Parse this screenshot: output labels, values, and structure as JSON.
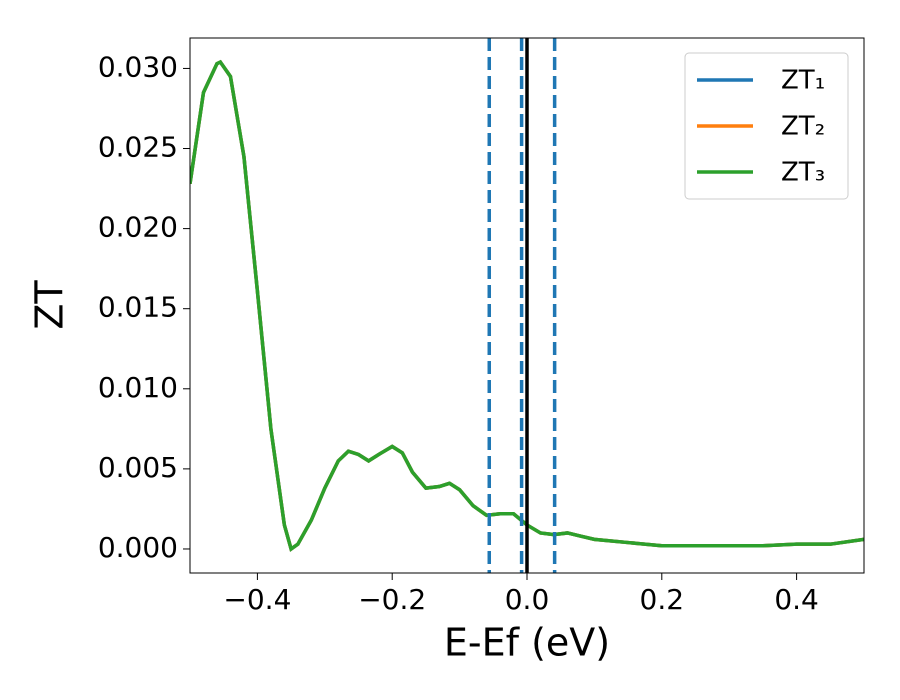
{
  "chart_data": {
    "type": "line",
    "x_label": "E-Ef (eV)",
    "y_label": "ZT",
    "x": [
      -0.5,
      -0.48,
      -0.46,
      -0.455,
      -0.44,
      -0.42,
      -0.4,
      -0.38,
      -0.36,
      -0.35,
      -0.34,
      -0.32,
      -0.3,
      -0.28,
      -0.265,
      -0.25,
      -0.235,
      -0.22,
      -0.2,
      -0.185,
      -0.17,
      -0.15,
      -0.13,
      -0.115,
      -0.1,
      -0.08,
      -0.06,
      -0.04,
      -0.02,
      0.0,
      0.02,
      0.04,
      0.06,
      0.08,
      0.1,
      0.15,
      0.2,
      0.25,
      0.3,
      0.35,
      0.4,
      0.45,
      0.5
    ],
    "series": [
      {
        "name": "ZT₁",
        "color": "#1f77b4",
        "values": [
          0.0228,
          0.0285,
          0.0303,
          0.0304,
          0.0295,
          0.0245,
          0.0161,
          0.0075,
          0.0015,
          0.0,
          0.0003,
          0.0018,
          0.0038,
          0.0055,
          0.0061,
          0.0059,
          0.0055,
          0.0059,
          0.0064,
          0.006,
          0.0048,
          0.0038,
          0.0039,
          0.0041,
          0.0037,
          0.0027,
          0.0021,
          0.0022,
          0.0022,
          0.0015,
          0.001,
          0.0009,
          0.001,
          0.0008,
          0.0006,
          0.0004,
          0.0002,
          0.0002,
          0.0002,
          0.0002,
          0.0003,
          0.0003,
          0.0006
        ]
      },
      {
        "name": "ZT₂",
        "color": "#ff7f0e",
        "values": [
          0.0228,
          0.0285,
          0.0303,
          0.0304,
          0.0295,
          0.0245,
          0.0161,
          0.0075,
          0.0015,
          0.0,
          0.0003,
          0.0018,
          0.0038,
          0.0055,
          0.0061,
          0.0059,
          0.0055,
          0.0059,
          0.0064,
          0.006,
          0.0048,
          0.0038,
          0.0039,
          0.0041,
          0.0037,
          0.0027,
          0.0021,
          0.0022,
          0.0022,
          0.0015,
          0.001,
          0.0009,
          0.001,
          0.0008,
          0.0006,
          0.0004,
          0.0002,
          0.0002,
          0.0002,
          0.0002,
          0.0003,
          0.0003,
          0.0006
        ]
      },
      {
        "name": "ZT₃",
        "color": "#2ca02c",
        "values": [
          0.0228,
          0.0285,
          0.0303,
          0.0304,
          0.0295,
          0.0245,
          0.0161,
          0.0075,
          0.0015,
          0.0,
          0.0003,
          0.0018,
          0.0038,
          0.0055,
          0.0061,
          0.0059,
          0.0055,
          0.0059,
          0.0064,
          0.006,
          0.0048,
          0.0038,
          0.0039,
          0.0041,
          0.0037,
          0.0027,
          0.0021,
          0.0022,
          0.0022,
          0.0015,
          0.001,
          0.0009,
          0.001,
          0.0008,
          0.0006,
          0.0004,
          0.0002,
          0.0002,
          0.0002,
          0.0002,
          0.0003,
          0.0003,
          0.0006
        ]
      }
    ],
    "ref_lines": [
      {
        "x": -0.056,
        "color": "#1f77b4",
        "dashed": true
      },
      {
        "x": -0.008,
        "color": "#1f77b4",
        "dashed": true
      },
      {
        "x": 0.041,
        "color": "#1f77b4",
        "dashed": true
      },
      {
        "x": 0.0,
        "color": "#000000",
        "dashed": false
      }
    ],
    "xlim": [
      -0.5,
      0.5
    ],
    "ylim": [
      -0.0015,
      0.0319
    ],
    "xticks": [
      {
        "value": -0.4,
        "label": "−0.4"
      },
      {
        "value": -0.2,
        "label": "−0.2"
      },
      {
        "value": 0,
        "label": "0.0"
      },
      0.2,
      0.4
    ],
    "yticks": [
      {
        "value": 0,
        "label": "0.000"
      },
      {
        "value": 0.005,
        "label": "0.005"
      },
      {
        "value": 0.01,
        "label": "0.010"
      },
      {
        "value": 0.015,
        "label": "0.015"
      },
      {
        "value": 0.02,
        "label": "0.020"
      },
      {
        "value": 0.025,
        "label": "0.025"
      },
      {
        "value": 0.03,
        "label": "0.030"
      }
    ],
    "legend": "upper right",
    "grid": false
  }
}
